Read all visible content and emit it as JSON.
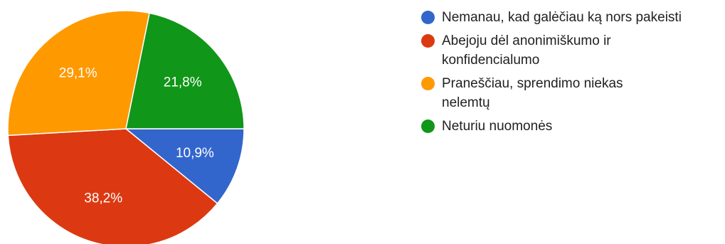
{
  "chart_data": {
    "type": "pie",
    "title": "",
    "slices": [
      {
        "label": "Nemanau, kad galėčiau ką nors pakeisti",
        "value": 10.9,
        "display": "10,9%",
        "color": "#3366cc"
      },
      {
        "label": "Abejoju dėl anonimiškumo ir konfidencialumo",
        "value": 38.2,
        "display": "38,2%",
        "color": "#dc3912"
      },
      {
        "label": "Praneščiau, sprendimo niekas nelemtų",
        "value": 29.1,
        "display": "29,1%",
        "color": "#ff9900"
      },
      {
        "label": "Neturiu nuomonės",
        "value": 21.8,
        "display": "21,8%",
        "color": "#109618"
      }
    ],
    "start_angle": "3 o'clock",
    "direction": "clockwise",
    "legend_position": "right"
  }
}
